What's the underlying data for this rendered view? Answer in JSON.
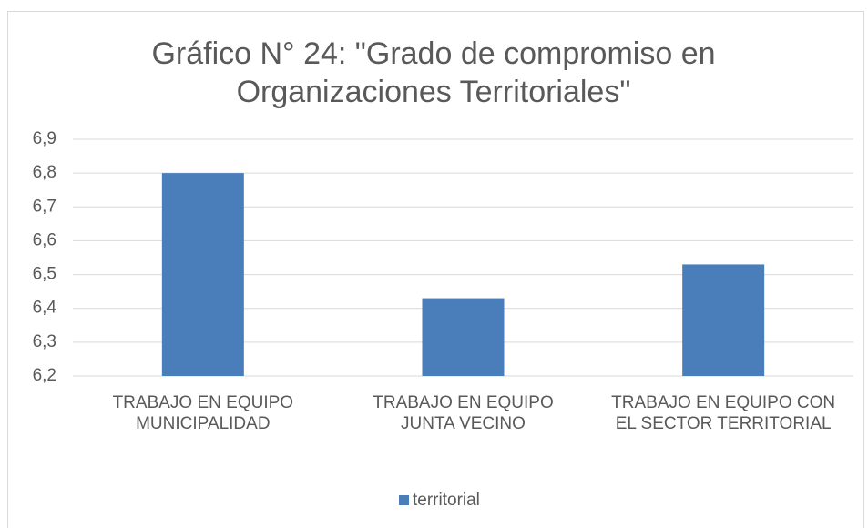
{
  "chart_data": {
    "type": "bar",
    "title": "Gráfico N° 24: \"Grado de compromiso en Organizaciones Territoriales\"",
    "categories": [
      "TRABAJO EN EQUIPO MUNICIPALIDAD",
      "TRABAJO EN EQUIPO JUNTA VECINO",
      "TRABAJO EN EQUIPO CON EL SECTOR TERRITORIAL"
    ],
    "series": [
      {
        "name": "territorial",
        "color": "#4a7ebb",
        "values": [
          6.8,
          6.43,
          6.53
        ]
      }
    ],
    "ylim": [
      6.2,
      6.9
    ],
    "yticks": [
      {
        "value": 6.2,
        "label": "6,2"
      },
      {
        "value": 6.3,
        "label": "6,3"
      },
      {
        "value": 6.4,
        "label": "6,4"
      },
      {
        "value": 6.5,
        "label": "6,5"
      },
      {
        "value": 6.6,
        "label": "6,6"
      },
      {
        "value": 6.7,
        "label": "6,7"
      },
      {
        "value": 6.8,
        "label": "6,8"
      },
      {
        "value": 6.9,
        "label": "6,9"
      }
    ],
    "grid": true,
    "legend": "bottom"
  }
}
